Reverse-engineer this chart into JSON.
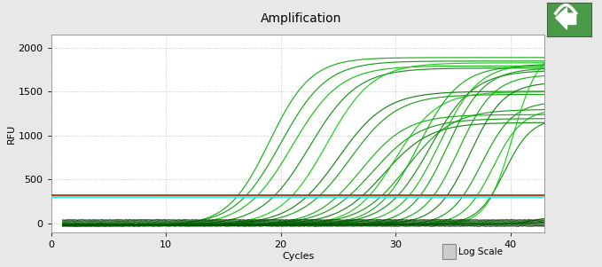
{
  "title": "Amplification",
  "xlabel": "Cycles",
  "ylabel": "RFU",
  "xlim": [
    1,
    43
  ],
  "ylim": [
    -100,
    2150
  ],
  "yticks": [
    0,
    500,
    1000,
    1500,
    2000
  ],
  "xticks": [
    0,
    10,
    20,
    30,
    40
  ],
  "background_color": "#e8e8e8",
  "plot_bg_color": "#ffffff",
  "grid_color": "#aaaaaa",
  "threshold_cyan": 310,
  "threshold_red": 325,
  "sigmoid_curves": [
    {
      "midpoint": 19.0,
      "steepness": 0.55,
      "plateau": 1920,
      "baseline": -30,
      "color": "#00aa00"
    },
    {
      "midpoint": 20.0,
      "steepness": 0.5,
      "plateau": 1870,
      "baseline": -20,
      "color": "#009900"
    },
    {
      "midpoint": 21.0,
      "steepness": 0.48,
      "plateau": 1820,
      "baseline": -25,
      "color": "#00bb00"
    },
    {
      "midpoint": 22.5,
      "steepness": 0.48,
      "plateau": 1790,
      "baseline": -20,
      "color": "#008800"
    },
    {
      "midpoint": 24.0,
      "steepness": 0.5,
      "plateau": 1850,
      "baseline": -20,
      "color": "#00cc00"
    },
    {
      "midpoint": 25.0,
      "steepness": 0.48,
      "plateau": 1520,
      "baseline": -15,
      "color": "#007700"
    },
    {
      "midpoint": 26.0,
      "steepness": 0.48,
      "plateau": 1480,
      "baseline": -10,
      "color": "#009900"
    },
    {
      "midpoint": 27.0,
      "steepness": 0.5,
      "plateau": 1260,
      "baseline": -20,
      "color": "#00aa00"
    },
    {
      "midpoint": 28.0,
      "steepness": 0.48,
      "plateau": 1210,
      "baseline": -15,
      "color": "#009900"
    },
    {
      "midpoint": 29.0,
      "steepness": 0.5,
      "plateau": 1160,
      "baseline": -10,
      "color": "#007700"
    },
    {
      "midpoint": 30.0,
      "steepness": 0.55,
      "plateau": 1520,
      "baseline": -20,
      "color": "#00cc00"
    },
    {
      "midpoint": 31.0,
      "steepness": 0.5,
      "plateau": 1310,
      "baseline": -10,
      "color": "#009900"
    },
    {
      "midpoint": 32.0,
      "steepness": 0.55,
      "plateau": 1820,
      "baseline": -20,
      "color": "#00aa00"
    },
    {
      "midpoint": 33.0,
      "steepness": 0.52,
      "plateau": 1760,
      "baseline": -15,
      "color": "#008800"
    },
    {
      "midpoint": 33.8,
      "steepness": 0.58,
      "plateau": 1830,
      "baseline": -10,
      "color": "#00bb00"
    },
    {
      "midpoint": 34.5,
      "steepness": 0.62,
      "plateau": 1790,
      "baseline": -20,
      "color": "#009900"
    },
    {
      "midpoint": 35.5,
      "steepness": 0.65,
      "plateau": 1710,
      "baseline": -15,
      "color": "#00aa00"
    },
    {
      "midpoint": 36.5,
      "steepness": 0.68,
      "plateau": 1620,
      "baseline": -10,
      "color": "#007700"
    },
    {
      "midpoint": 37.5,
      "steepness": 0.72,
      "plateau": 1410,
      "baseline": -20,
      "color": "#009900"
    },
    {
      "midpoint": 38.5,
      "steepness": 0.78,
      "plateau": 1320,
      "baseline": -15,
      "color": "#00bb00"
    },
    {
      "midpoint": 39.5,
      "steepness": 0.85,
      "plateau": 1210,
      "baseline": -10,
      "color": "#008800"
    },
    {
      "midpoint": 40.2,
      "steepness": 0.88,
      "plateau": 2010,
      "baseline": -20,
      "color": "#00cc00"
    },
    {
      "midpoint": 42.0,
      "steepness": 1.1,
      "plateau": 90,
      "baseline": -10,
      "color": "#006600"
    },
    {
      "midpoint": 43.5,
      "steepness": 1.3,
      "plateau": 60,
      "baseline": -5,
      "color": "#007700"
    }
  ],
  "flat_curves": [
    {
      "level": -30,
      "color": "#002200"
    },
    {
      "level": -20,
      "color": "#003300"
    },
    {
      "level": -10,
      "color": "#004400"
    },
    {
      "level": 5,
      "color": "#005500"
    },
    {
      "level": 12,
      "color": "#006600"
    },
    {
      "level": 22,
      "color": "#004400"
    },
    {
      "level": 32,
      "color": "#005500"
    },
    {
      "level": 42,
      "color": "#003300"
    }
  ],
  "legend_text": "Log Scale",
  "title_fontsize": 10,
  "axis_fontsize": 8,
  "tick_fontsize": 8
}
